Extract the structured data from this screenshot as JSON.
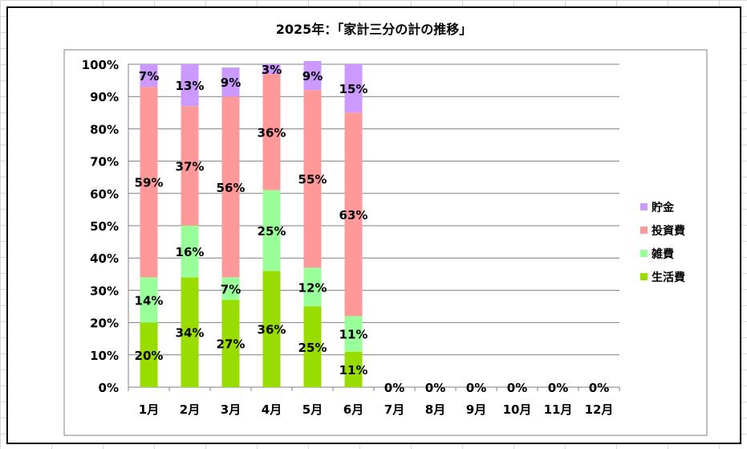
{
  "chart_data": {
    "type": "bar",
    "stacked": "percent",
    "title": "2025年：「家計三分の計の推移」",
    "xlabel": "",
    "ylabel": "",
    "ylim": [
      0,
      100
    ],
    "yticks": [
      "0%",
      "10%",
      "20%",
      "30%",
      "40%",
      "50%",
      "60%",
      "70%",
      "80%",
      "90%",
      "100%"
    ],
    "categories": [
      "1月",
      "2月",
      "3月",
      "4月",
      "5月",
      "6月",
      "7月",
      "8月",
      "9月",
      "10月",
      "11月",
      "12月"
    ],
    "series": [
      {
        "name": "生活費",
        "color": "#99dd00",
        "values": [
          20,
          34,
          27,
          36,
          25,
          11,
          0,
          0,
          0,
          0,
          0,
          0
        ],
        "labels": [
          "20%",
          "34%",
          "27%",
          "36%",
          "25%",
          "11%",
          "0%",
          "0%",
          "0%",
          "0%",
          "0%",
          "0%"
        ]
      },
      {
        "name": "雑費",
        "color": "#99ff99",
        "values": [
          14,
          16,
          7,
          25,
          12,
          11,
          0,
          0,
          0,
          0,
          0,
          0
        ],
        "labels": [
          "14%",
          "16%",
          "7%",
          "25%",
          "12%",
          "11%",
          "",
          "",
          "",
          "",
          "",
          ""
        ]
      },
      {
        "name": "投資費",
        "color": "#ff9999",
        "values": [
          59,
          37,
          56,
          36,
          55,
          63,
          0,
          0,
          0,
          0,
          0,
          0
        ],
        "labels": [
          "59%",
          "37%",
          "56%",
          "36%",
          "55%",
          "63%",
          "",
          "",
          "",
          "",
          "",
          ""
        ]
      },
      {
        "name": "貯金",
        "color": "#cc99ff",
        "values": [
          7,
          13,
          9,
          3,
          9,
          15,
          0,
          0,
          0,
          0,
          0,
          0
        ],
        "labels": [
          "7%",
          "13%",
          "9%",
          "3%",
          "9%",
          "15%",
          "",
          "",
          "",
          "",
          "",
          ""
        ]
      }
    ],
    "legend_order": [
      "貯金",
      "投資費",
      "雑費",
      "生活費"
    ],
    "legend_position": "right",
    "grid": true
  }
}
